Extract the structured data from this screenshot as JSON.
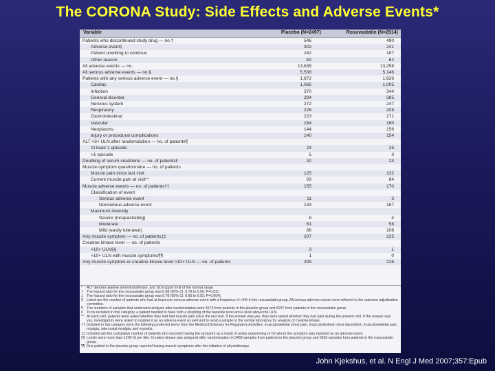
{
  "title": "The CORONA Study: Side Effects and Adverse Events*",
  "table": {
    "columns": [
      "Variable",
      "Placebo (N=2497)",
      "Rosuvastatin (N=2514)"
    ],
    "rows": [
      {
        "label": "Patients who discontinued study drug — no.†",
        "indent": 0,
        "placebo": "546",
        "rosuvastatin": "490"
      },
      {
        "label": "Adverse event‡",
        "indent": 1,
        "placebo": "302",
        "rosuvastatin": "241"
      },
      {
        "label": "Patient unwilling to continue",
        "indent": 1,
        "placebo": "162",
        "rosuvastatin": "187"
      },
      {
        "label": "Other reason",
        "indent": 1,
        "placebo": "82",
        "rosuvastatin": "62"
      },
      {
        "label": "All adverse events — no.",
        "indent": 0,
        "placebo": "13,635",
        "rosuvastatin": "13,258"
      },
      {
        "label": "All serious adverse events — no.§",
        "indent": 0,
        "placebo": "5,536",
        "rosuvastatin": "5,146"
      },
      {
        "label": "Patients with any serious adverse event — no.§",
        "indent": 0,
        "placebo": "1,672",
        "rosuvastatin": "1,626"
      },
      {
        "label": "Cardiac",
        "indent": 1,
        "placebo": "1,065",
        "rosuvastatin": "1,005"
      },
      {
        "label": "Infection",
        "indent": 1,
        "placebo": "370",
        "rosuvastatin": "344"
      },
      {
        "label": "General disorder",
        "indent": 1,
        "placebo": "294",
        "rosuvastatin": "285"
      },
      {
        "label": "Nervous system",
        "indent": 1,
        "placebo": "272",
        "rosuvastatin": "247"
      },
      {
        "label": "Respiratory",
        "indent": 1,
        "placebo": "226",
        "rosuvastatin": "208"
      },
      {
        "label": "Gastrointestinal",
        "indent": 1,
        "placebo": "223",
        "rosuvastatin": "171"
      },
      {
        "label": "Vascular",
        "indent": 1,
        "placebo": "164",
        "rosuvastatin": "160"
      },
      {
        "label": "Neoplasms",
        "indent": 1,
        "placebo": "144",
        "rosuvastatin": "156"
      },
      {
        "label": "Injury or procedural complications",
        "indent": 1,
        "placebo": "140",
        "rosuvastatin": "154"
      },
      {
        "label": "ALT >3× ULN after randomization — no. of patients¶",
        "indent": 0,
        "placebo": "",
        "rosuvastatin": ""
      },
      {
        "label": "At least 1 episode",
        "indent": 1,
        "placebo": "24",
        "rosuvastatin": "25"
      },
      {
        "label": ">1 episode",
        "indent": 1,
        "placebo": "5",
        "rosuvastatin": "3"
      },
      {
        "label": "Doubling of serum creatinine — no. of patients‖",
        "indent": 0,
        "placebo": "32",
        "rosuvastatin": "23"
      },
      {
        "label": "Muscle-symptom questionnaire — no. of patients",
        "indent": 0,
        "placebo": "",
        "rosuvastatin": ""
      },
      {
        "label": "Muscle pain since last visit",
        "indent": 1,
        "placebo": "125",
        "rosuvastatin": "132"
      },
      {
        "label": "Current muscle pain at visit**",
        "indent": 1,
        "placebo": "93",
        "rosuvastatin": "84"
      },
      {
        "label": "Muscle adverse events — no. of patients††",
        "indent": 0,
        "placebo": "155",
        "rosuvastatin": "170"
      },
      {
        "label": "Classification of event",
        "indent": 1,
        "placebo": "",
        "rosuvastatin": ""
      },
      {
        "label": "Serious adverse event",
        "indent": 2,
        "placebo": "11",
        "rosuvastatin": "3"
      },
      {
        "label": "Nonserious adverse event",
        "indent": 2,
        "placebo": "144",
        "rosuvastatin": "167"
      },
      {
        "label": "Maximum intensity",
        "indent": 1,
        "placebo": "",
        "rosuvastatin": ""
      },
      {
        "label": "Severe (incapacitating)",
        "indent": 2,
        "placebo": "8",
        "rosuvastatin": "4"
      },
      {
        "label": "Moderate",
        "indent": 2,
        "placebo": "61",
        "rosuvastatin": "58"
      },
      {
        "label": "Mild (easily tolerated)",
        "indent": 2,
        "placebo": "86",
        "rosuvastatin": "108"
      },
      {
        "label": "Any muscle symptom — no. of patients‡‡",
        "indent": 0,
        "placebo": "207",
        "rosuvastatin": "225"
      },
      {
        "label": "Creatine kinase level — no. of patients",
        "indent": 0,
        "placebo": "",
        "rosuvastatin": ""
      },
      {
        "label": ">10× ULN§§",
        "indent": 1,
        "placebo": "3",
        "rosuvastatin": "1"
      },
      {
        "label": ">10× ULN with muscle symptoms¶¶",
        "indent": 1,
        "placebo": "1",
        "rosuvastatin": "0"
      },
      {
        "label": "Any muscle symptom or creatine kinase level >10× ULN — no. of patients",
        "indent": 0,
        "placebo": "209",
        "rosuvastatin": "226"
      }
    ]
  },
  "footnotes": [
    {
      "sym": "*",
      "text": "ALT denotes alanine aminotransferase, and ULN upper limit of the normal range."
    },
    {
      "sym": "†",
      "text": "The hazard ratio for the rosuvastatin group was 0.88 (95% CI, 0.78 to 0.99; P=0.03)."
    },
    {
      "sym": "‡",
      "text": "The hazard ratio for the rosuvastatin group was 0.78 (95% CI, 0.66 to 0.92; P=0.004)."
    },
    {
      "sym": "§",
      "text": "Listed are the number of patients who had at least one serious adverse event with a frequency of >5% in the rosuvastatin group. All serious adverse events were referred to the outcome adjudication committee."
    },
    {
      "sym": "¶",
      "text": "The numbers of samples that underwent analysis after randomization were 8173 from patients in the placebo group and 8297 from patients in the rosuvastatin group."
    },
    {
      "sym": "‖",
      "text": "To be included in this category, a patient needed to have both a doubling of the baseline level and a level above the ULN."
    },
    {
      "sym": "**",
      "text": "At each visit, patients were asked whether they had had muscle pain since the last visit. If the answer was yes, they were asked whether they had pain during the present visit. If the answer was yes, investigators were asked to register it as an adverse event as well and to send a sample to the central laboratory for analysis of creatine kinase."
    },
    {
      "sym": "††",
      "text": "Included in this category were the following preferred terms from the Medical Dictionary for Regulatory Activities: musculoskeletal chest pain, musculoskeletal chest discomfort, musculoskeletal pain, myalgia, intercostal myalgia, and myositis."
    },
    {
      "sym": "‡‡",
      "text": "Included are the cumulative number of patients who reported having the symptom as a result of active questioning or for whom the symptom was reported as an adverse event."
    },
    {
      "sym": "§§",
      "text": "Levels were more than 1200 IU per liter. Creatine kinase was analyzed after randomization in 5468 samples from patients in the placebo group and 5602 samples from patients in the rosuvastatin group."
    },
    {
      "sym": "¶¶",
      "text": "One patient in the placebo group reported having muscle symptoms after the initiation of physiotherapy."
    }
  ],
  "citation": "John Kjekshus, et al. N Engl J Med 2007;357:Epub"
}
